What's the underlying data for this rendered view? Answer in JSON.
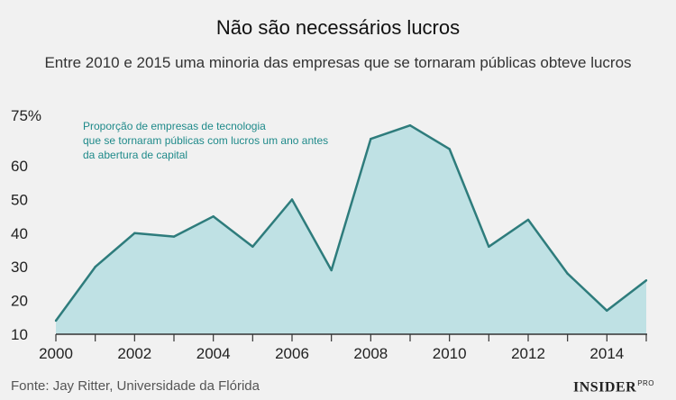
{
  "header": {
    "title": "Não são necessários lucros",
    "subtitle": "Entre 2010 e 2015 uma minoria das empresas que se tornaram públicas obteve lucros"
  },
  "footer": {
    "source": "Fonte: Jay Ritter, Universidade da Flórida",
    "brand": "INSIDER",
    "brand_suffix": "PRO"
  },
  "colors": {
    "line": "#2e7c7c",
    "area": "#bfe1e4",
    "annotation": "#1f8a8a",
    "background": "#f1f1f1"
  },
  "chart_data": {
    "type": "area",
    "title": "Não são necessários lucros",
    "subtitle": "Entre 2010 e 2015 uma minoria das empresas que se tornaram públicas obteve lucros",
    "x": [
      2000,
      2001,
      2002,
      2003,
      2004,
      2005,
      2006,
      2007,
      2008,
      2009,
      2010,
      2011,
      2012,
      2013,
      2014,
      2015
    ],
    "series": [
      {
        "values": [
          14,
          30,
          40,
          39,
          45,
          36,
          50,
          29,
          68,
          72,
          65,
          36,
          44,
          28,
          17,
          26
        ]
      }
    ],
    "xlim": [
      2000,
      2015
    ],
    "ylim": [
      10,
      75
    ],
    "x_ticks": [
      2000,
      2002,
      2004,
      2006,
      2008,
      2010,
      2012,
      2014
    ],
    "y_ticks": [
      10,
      20,
      30,
      40,
      50,
      60,
      75
    ],
    "y_tick_labels": [
      "10",
      "20",
      "30",
      "40",
      "50",
      "60",
      "75%"
    ],
    "annotation": [
      "Proporção de empresas de tecnologia",
      "que se tornaram públicas com lucros um ano antes",
      "da abertura de capital"
    ],
    "xlabel": "",
    "ylabel": "",
    "grid": false,
    "legend": "none"
  }
}
